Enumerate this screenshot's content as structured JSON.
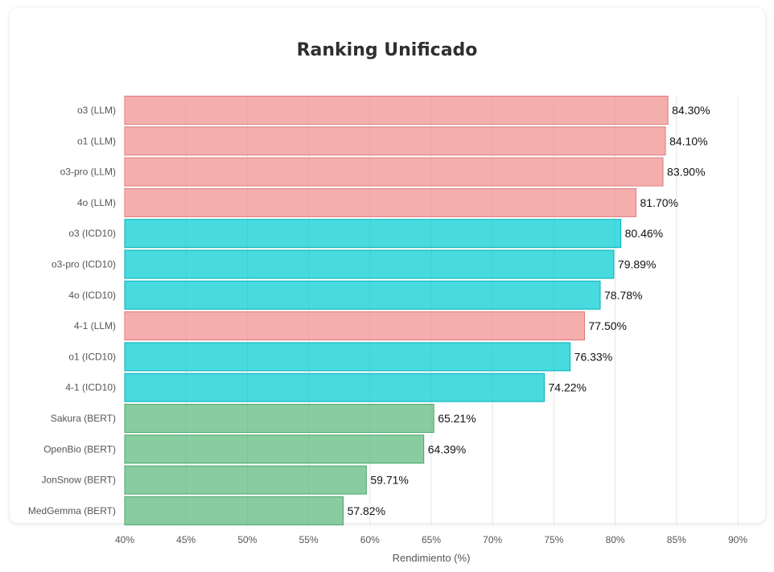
{
  "chart_data": {
    "type": "bar",
    "orientation": "horizontal",
    "title": "Ranking Unificado",
    "xlabel": "Rendimiento (%)",
    "ylabel": "",
    "xlim": [
      40,
      90
    ],
    "x_ticks": [
      40,
      45,
      50,
      55,
      60,
      65,
      70,
      75,
      80,
      85,
      90
    ],
    "x_tick_suffix": "%",
    "grid": true,
    "group_colors": {
      "LLM": {
        "fill": "#f08f8f",
        "stroke": "#e07a7a"
      },
      "ICD10": {
        "fill": "#00ccd1",
        "stroke": "#00b3b8"
      },
      "BERT": {
        "fill": "#5bb97a",
        "stroke": "#4aa86a"
      }
    },
    "bars": [
      {
        "label": "o3 (LLM)",
        "value": 84.3,
        "group": "LLM",
        "value_label": "84.30%"
      },
      {
        "label": "o1 (LLM)",
        "value": 84.1,
        "group": "LLM",
        "value_label": "84.10%"
      },
      {
        "label": "o3-pro (LLM)",
        "value": 83.9,
        "group": "LLM",
        "value_label": "83.90%"
      },
      {
        "label": "4o (LLM)",
        "value": 81.7,
        "group": "LLM",
        "value_label": "81.70%"
      },
      {
        "label": "o3 (ICD10)",
        "value": 80.46,
        "group": "ICD10",
        "value_label": "80.46%"
      },
      {
        "label": "o3-pro (ICD10)",
        "value": 79.89,
        "group": "ICD10",
        "value_label": "79.89%"
      },
      {
        "label": "4o (ICD10)",
        "value": 78.78,
        "group": "ICD10",
        "value_label": "78.78%"
      },
      {
        "label": "4-1 (LLM)",
        "value": 77.5,
        "group": "LLM",
        "value_label": "77.50%"
      },
      {
        "label": "o1 (ICD10)",
        "value": 76.33,
        "group": "ICD10",
        "value_label": "76.33%"
      },
      {
        "label": "4-1 (ICD10)",
        "value": 74.22,
        "group": "ICD10",
        "value_label": "74.22%"
      },
      {
        "label": "Sakura (BERT)",
        "value": 65.21,
        "group": "BERT",
        "value_label": "65.21%"
      },
      {
        "label": "OpenBio (BERT)",
        "value": 64.39,
        "group": "BERT",
        "value_label": "64.39%"
      },
      {
        "label": "JonSnow (BERT)",
        "value": 59.71,
        "group": "BERT",
        "value_label": "59.71%"
      },
      {
        "label": "MedGemma (BERT)",
        "value": 57.82,
        "group": "BERT",
        "value_label": "57.82%"
      }
    ]
  }
}
